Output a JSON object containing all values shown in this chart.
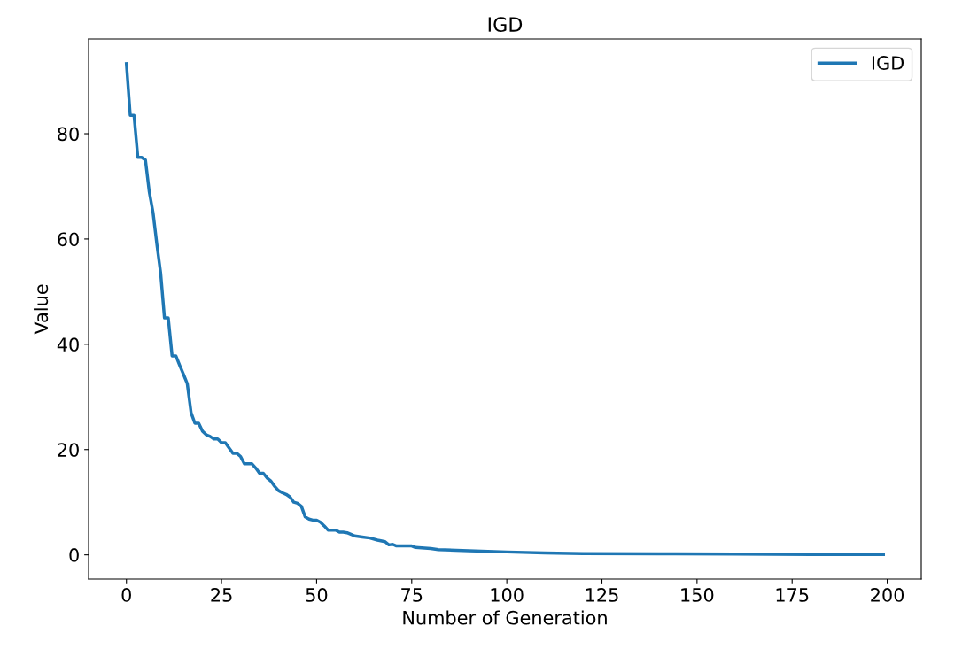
{
  "chart_data": {
    "type": "line",
    "title": "IGD",
    "xlabel": "Number of Generation",
    "ylabel": "Value",
    "x": [
      0,
      1,
      2,
      3,
      4,
      5,
      6,
      7,
      8,
      9,
      10,
      11,
      12,
      13,
      14,
      15,
      16,
      17,
      18,
      19,
      20,
      21,
      22,
      23,
      24,
      25,
      26,
      27,
      28,
      29,
      30,
      31,
      32,
      33,
      34,
      35,
      36,
      37,
      38,
      39,
      40,
      41,
      42,
      43,
      44,
      45,
      46,
      47,
      48,
      49,
      50,
      51,
      52,
      53,
      54,
      55,
      56,
      57,
      58,
      59,
      60,
      62,
      64,
      66,
      68,
      69,
      70,
      71,
      75,
      76,
      80,
      82,
      90,
      100,
      110,
      120,
      140,
      160,
      180,
      199
    ],
    "series": [
      {
        "name": "IGD",
        "color": "#1f77b4",
        "values": [
          93.3,
          83.5,
          83.5,
          75.5,
          75.5,
          75,
          69,
          65,
          59,
          53.5,
          45,
          45,
          37.8,
          37.8,
          36,
          34.3,
          32.5,
          27,
          25,
          25,
          23.5,
          22.8,
          22.5,
          22,
          22,
          21.3,
          21.3,
          20.3,
          19.3,
          19.3,
          18.7,
          17.3,
          17.3,
          17.3,
          16.5,
          15.5,
          15.5,
          14.6,
          14,
          13,
          12.2,
          11.8,
          11.5,
          11,
          10,
          9.8,
          9.2,
          7.2,
          6.8,
          6.6,
          6.6,
          6.2,
          5.5,
          4.7,
          4.7,
          4.7,
          4.3,
          4.3,
          4.2,
          3.9,
          3.6,
          3.4,
          3.2,
          2.8,
          2.5,
          1.9,
          2,
          1.7,
          1.7,
          1.4,
          1.2,
          1.0,
          0.8,
          0.55,
          0.35,
          0.25,
          0.2,
          0.15,
          0.08,
          0.05
        ]
      }
    ],
    "xlim": [
      -9.95,
      208.95
    ],
    "ylim": [
      -4.6,
      98
    ],
    "xticks": [
      0,
      25,
      50,
      75,
      100,
      125,
      150,
      175,
      200
    ],
    "yticks": [
      0,
      20,
      40,
      60,
      80
    ],
    "legend": "top right",
    "grid": false
  }
}
